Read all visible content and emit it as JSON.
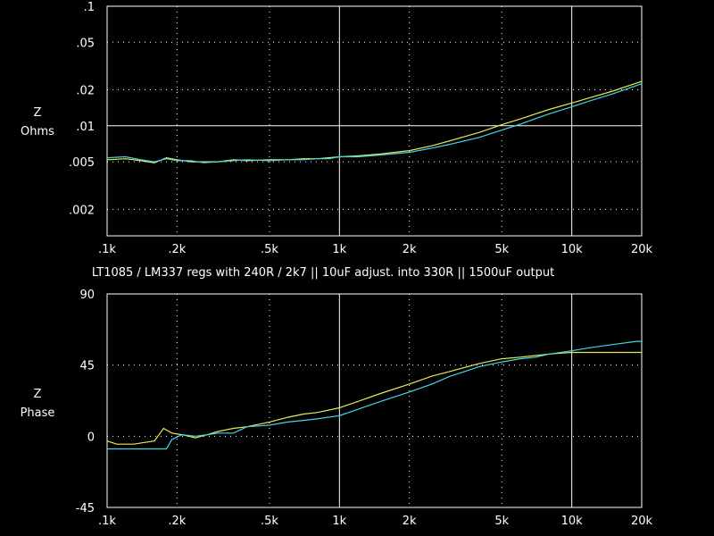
{
  "caption": "LT1085 / LM337 regs with 240R / 2k7 || 10uF adjust. into 330R || 1500uF output",
  "colors": {
    "background": "#000000",
    "frame": "#ffffff",
    "grid": "#ffffff",
    "series_yellow": "#e8e85a",
    "series_cyan": "#3fd8e8"
  },
  "chart_data": [
    {
      "type": "line",
      "ylabel_lines": [
        "Z",
        "Ohms"
      ],
      "x_scale": "log",
      "y_scale": "log",
      "xlim": [
        100,
        20000
      ],
      "ylim": [
        0.0012,
        0.1
      ],
      "x_ticks": [
        {
          "v": 100,
          "label": ".1k"
        },
        {
          "v": 200,
          "label": ".2k"
        },
        {
          "v": 500,
          "label": ".5k"
        },
        {
          "v": 1000,
          "label": "1k"
        },
        {
          "v": 2000,
          "label": "2k"
        },
        {
          "v": 5000,
          "label": "5k"
        },
        {
          "v": 10000,
          "label": "10k"
        },
        {
          "v": 20000,
          "label": "20k"
        }
      ],
      "y_ticks": [
        {
          "v": 0.1,
          "label": ".1"
        },
        {
          "v": 0.05,
          "label": ".05"
        },
        {
          "v": 0.02,
          "label": ".02"
        },
        {
          "v": 0.01,
          "label": ".01"
        },
        {
          "v": 0.005,
          "label": ".005"
        },
        {
          "v": 0.002,
          "label": ".002"
        }
      ],
      "x_major_lines": [
        1000,
        10000
      ],
      "y_major_lines": [
        0.01
      ],
      "series": [
        {
          "color": "#e8e85a",
          "x": [
            100,
            120,
            140,
            160,
            180,
            200,
            230,
            260,
            300,
            350,
            400,
            500,
            600,
            700,
            800,
            900,
            1000,
            1200,
            1500,
            2000,
            2500,
            3000,
            4000,
            5000,
            6000,
            7000,
            8000,
            10000,
            12000,
            15000,
            20000
          ],
          "y": [
            0.0052,
            0.0053,
            0.0051,
            0.0049,
            0.0054,
            0.0052,
            0.005,
            0.005,
            0.005,
            0.0052,
            0.0051,
            0.0052,
            0.0052,
            0.0053,
            0.0053,
            0.0054,
            0.0055,
            0.0056,
            0.0058,
            0.0062,
            0.0068,
            0.0075,
            0.0088,
            0.0102,
            0.0114,
            0.0126,
            0.0137,
            0.0155,
            0.0172,
            0.0195,
            0.0235
          ]
        },
        {
          "color": "#3fd8e8",
          "x": [
            100,
            120,
            140,
            160,
            180,
            200,
            230,
            260,
            300,
            350,
            400,
            500,
            600,
            700,
            800,
            900,
            1000,
            1200,
            1500,
            2000,
            2500,
            3000,
            4000,
            5000,
            6000,
            7000,
            8000,
            10000,
            12000,
            15000,
            20000
          ],
          "y": [
            0.0054,
            0.0055,
            0.0052,
            0.005,
            0.0053,
            0.0051,
            0.0051,
            0.0049,
            0.005,
            0.0051,
            0.0052,
            0.0051,
            0.0052,
            0.0052,
            0.0053,
            0.0053,
            0.0055,
            0.0055,
            0.0057,
            0.006,
            0.0065,
            0.007,
            0.008,
            0.0092,
            0.0103,
            0.0115,
            0.0126,
            0.0144,
            0.0162,
            0.0185,
            0.0225
          ]
        }
      ]
    },
    {
      "type": "line",
      "ylabel_lines": [
        "Z",
        "Phase"
      ],
      "x_scale": "log",
      "y_scale": "linear",
      "xlim": [
        100,
        20000
      ],
      "ylim": [
        -45,
        90
      ],
      "x_ticks": [
        {
          "v": 100,
          "label": ".1k"
        },
        {
          "v": 200,
          "label": ".2k"
        },
        {
          "v": 500,
          "label": ".5k"
        },
        {
          "v": 1000,
          "label": "1k"
        },
        {
          "v": 2000,
          "label": "2k"
        },
        {
          "v": 5000,
          "label": "5k"
        },
        {
          "v": 10000,
          "label": "10k"
        },
        {
          "v": 20000,
          "label": "20k"
        }
      ],
      "y_ticks": [
        {
          "v": 90,
          "label": "90"
        },
        {
          "v": 45,
          "label": "45"
        },
        {
          "v": 0,
          "label": "0"
        },
        {
          "v": -45,
          "label": "-45"
        }
      ],
      "x_major_lines": [
        1000,
        10000
      ],
      "y_major_lines": [],
      "series": [
        {
          "color": "#e8e85a",
          "x": [
            100,
            110,
            130,
            160,
            175,
            190,
            210,
            240,
            270,
            300,
            350,
            400,
            500,
            600,
            700,
            800,
            1000,
            1200,
            1500,
            2000,
            2500,
            3000,
            4000,
            5000,
            6000,
            7000,
            8000,
            10000,
            12000,
            15000,
            19000,
            20000
          ],
          "y": [
            -3,
            -5,
            -5,
            -3,
            5,
            2,
            1,
            -1,
            1,
            3,
            5,
            6,
            9,
            12,
            14,
            15,
            18,
            22,
            27,
            33,
            38,
            41,
            46,
            49,
            50,
            51,
            52,
            53,
            53,
            53,
            53,
            53
          ]
        },
        {
          "color": "#3fd8e8",
          "x": [
            100,
            110,
            130,
            160,
            180,
            190,
            210,
            240,
            270,
            300,
            350,
            400,
            500,
            600,
            700,
            800,
            1000,
            1200,
            1500,
            2000,
            2500,
            3000,
            4000,
            5000,
            6000,
            7000,
            8000,
            10000,
            12000,
            15000,
            19000,
            20000
          ],
          "y": [
            -8,
            -8,
            -8,
            -8,
            -8,
            -2,
            1,
            0,
            1,
            2,
            2,
            6,
            7,
            9,
            10,
            11,
            13,
            17,
            22,
            28,
            33,
            38,
            44,
            47,
            49,
            50,
            52,
            54,
            56,
            58,
            60,
            60
          ]
        }
      ]
    }
  ]
}
